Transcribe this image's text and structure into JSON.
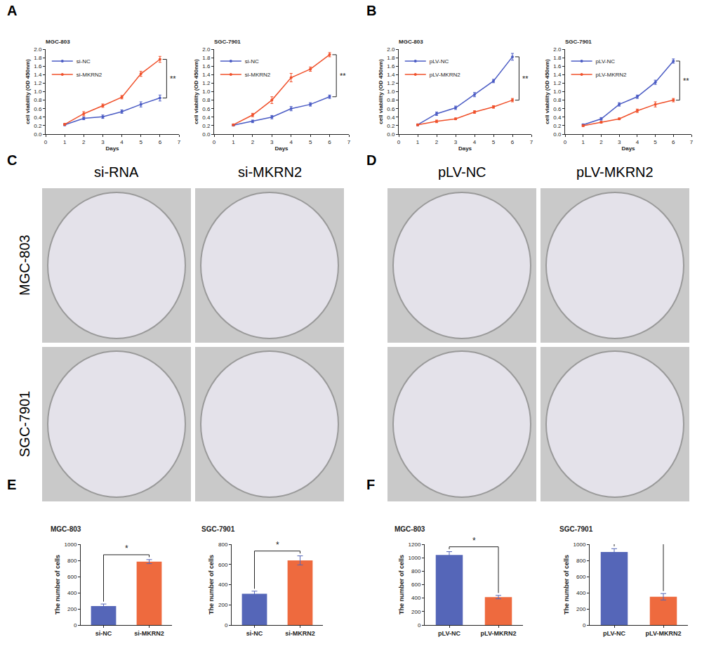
{
  "chart_data": [
    {
      "type": "line",
      "panel": "A",
      "title": "MGC-803",
      "x_label": "Days",
      "y_label": "cell viability (OD 450nm)",
      "x": [
        1,
        2,
        3,
        4,
        5,
        6
      ],
      "xlim": [
        0,
        7
      ],
      "xticks": [
        0,
        1,
        2,
        3,
        4,
        5,
        6,
        7
      ],
      "ylim": [
        0,
        2
      ],
      "yticks": [
        {
          "value": 0,
          "label": "0.0"
        },
        0.2,
        0.4,
        0.6,
        0.8,
        {
          "value": 1,
          "label": "1.0"
        },
        1.2,
        1.4,
        1.6,
        1.8,
        {
          "value": 2,
          "label": "2.0"
        }
      ],
      "grid": false,
      "legend": "upper left",
      "significance": "**",
      "series": [
        {
          "name": "si-NC",
          "color": "#4a5bc4",
          "marker": "circle",
          "values": [
            0.22,
            0.37,
            0.41,
            0.53,
            0.7,
            0.85
          ],
          "errors": [
            0.02,
            0.03,
            0.04,
            0.04,
            0.06,
            0.07
          ]
        },
        {
          "name": "si-MKRN2",
          "color": "#f0502a",
          "marker": "circle",
          "values": [
            0.23,
            0.48,
            0.67,
            0.87,
            1.42,
            1.76
          ],
          "errors": [
            0.02,
            0.05,
            0.04,
            0.04,
            0.06,
            0.07
          ]
        }
      ]
    },
    {
      "type": "line",
      "panel": "A",
      "title": "SGC-7901",
      "x_label": "Days",
      "y_label": "cell viability (OD 450nm)",
      "x": [
        1,
        2,
        3,
        4,
        5,
        6
      ],
      "xlim": [
        0,
        7
      ],
      "xticks": [
        0,
        1,
        2,
        3,
        4,
        5,
        6,
        7
      ],
      "ylim": [
        0,
        2
      ],
      "yticks": [
        {
          "value": 0,
          "label": "0.0"
        },
        0.2,
        0.4,
        0.6,
        0.8,
        {
          "value": 1,
          "label": "1.0"
        },
        1.2,
        1.4,
        1.6,
        1.8,
        {
          "value": 2,
          "label": "2.0"
        }
      ],
      "grid": false,
      "legend": "upper left",
      "significance": "**",
      "series": [
        {
          "name": "si-NC",
          "color": "#4a5bc4",
          "marker": "circle",
          "values": [
            0.21,
            0.3,
            0.4,
            0.6,
            0.7,
            0.88
          ],
          "errors": [
            0.02,
            0.03,
            0.04,
            0.05,
            0.04,
            0.04
          ]
        },
        {
          "name": "si-MKRN2",
          "color": "#f0502a",
          "marker": "circle",
          "values": [
            0.22,
            0.45,
            0.8,
            1.33,
            1.53,
            1.87
          ],
          "errors": [
            0.02,
            0.04,
            0.08,
            0.1,
            0.05,
            0.05
          ]
        }
      ]
    },
    {
      "type": "line",
      "panel": "B",
      "title": "MGC-803",
      "x_label": "Days",
      "y_label": "cell viability (OD 450nm)",
      "x": [
        1,
        2,
        3,
        4,
        5,
        6
      ],
      "xlim": [
        0,
        7
      ],
      "xticks": [
        0,
        1,
        2,
        3,
        4,
        5,
        6,
        7
      ],
      "ylim": [
        0,
        2
      ],
      "yticks": [
        {
          "value": 0,
          "label": "0.0"
        },
        0.2,
        0.4,
        0.6,
        0.8,
        {
          "value": 1,
          "label": "1.0"
        },
        1.2,
        1.4,
        1.6,
        1.8,
        {
          "value": 2,
          "label": "2.0"
        }
      ],
      "grid": false,
      "legend": "upper left",
      "significance": "**",
      "series": [
        {
          "name": "pLV-NC",
          "color": "#4a5bc4",
          "marker": "circle",
          "values": [
            0.22,
            0.48,
            0.62,
            0.93,
            1.25,
            1.82
          ],
          "errors": [
            0.02,
            0.04,
            0.04,
            0.05,
            0.04,
            0.08
          ]
        },
        {
          "name": "pLV-MKRN2",
          "color": "#f0502a",
          "marker": "circle",
          "values": [
            0.22,
            0.3,
            0.36,
            0.52,
            0.64,
            0.8
          ],
          "errors": [
            0.02,
            0.03,
            0.02,
            0.03,
            0.03,
            0.04
          ]
        }
      ]
    },
    {
      "type": "line",
      "panel": "B",
      "title": "SGC-7901",
      "x_label": "Days",
      "y_label": "cell viability (OD 450nm)",
      "x": [
        1,
        2,
        3,
        4,
        5,
        6
      ],
      "xlim": [
        0,
        7
      ],
      "xticks": [
        0,
        1,
        2,
        3,
        4,
        5,
        6,
        7
      ],
      "ylim": [
        0,
        2
      ],
      "yticks": [
        {
          "value": 0,
          "label": "0.0"
        },
        0.2,
        0.4,
        0.6,
        0.8,
        {
          "value": 1,
          "label": "1.0"
        },
        1.2,
        1.4,
        1.6,
        1.8,
        {
          "value": 2,
          "label": "2.0"
        }
      ],
      "grid": false,
      "legend": "upper left",
      "significance": "**",
      "series": [
        {
          "name": "pLV-NC",
          "color": "#4a5bc4",
          "marker": "circle",
          "values": [
            0.22,
            0.36,
            0.7,
            0.88,
            1.22,
            1.72
          ],
          "errors": [
            0.02,
            0.03,
            0.04,
            0.04,
            0.05,
            0.05
          ]
        },
        {
          "name": "pLV-MKRN2",
          "color": "#f0502a",
          "marker": "circle",
          "values": [
            0.2,
            0.28,
            0.36,
            0.55,
            0.7,
            0.8
          ],
          "errors": [
            0.02,
            0.02,
            0.02,
            0.04,
            0.06,
            0.04
          ]
        }
      ]
    },
    {
      "type": "bar",
      "panel": "E",
      "title": "MGC-803",
      "y_label": "The number of cells",
      "categories": [
        "si-NC",
        "si-MKRN2"
      ],
      "values": [
        235,
        785
      ],
      "errors": [
        25,
        25
      ],
      "colors": [
        "#5566b8",
        "#ee6a3e"
      ],
      "ylim": [
        0,
        1000
      ],
      "yticks": [
        0,
        200,
        400,
        600,
        800,
        1000
      ],
      "grid": false,
      "significance": "*"
    },
    {
      "type": "bar",
      "panel": "E",
      "title": "SGC-7901",
      "y_label": "The number of cells",
      "categories": [
        "si-NC",
        "si-MKRN2"
      ],
      "values": [
        310,
        640
      ],
      "errors": [
        25,
        45
      ],
      "colors": [
        "#5566b8",
        "#ee6a3e"
      ],
      "ylim": [
        0,
        800
      ],
      "yticks": [
        0,
        200,
        400,
        600,
        800
      ],
      "grid": false,
      "significance": "*"
    },
    {
      "type": "bar",
      "panel": "F",
      "title": "MGC-803",
      "y_label": "The number of cells",
      "categories": [
        "pLV-NC",
        "pLV-MKRN2"
      ],
      "values": [
        1040,
        415
      ],
      "errors": [
        50,
        25
      ],
      "colors": [
        "#5566b8",
        "#ee6a3e"
      ],
      "ylim": [
        0,
        1200
      ],
      "yticks": [
        0,
        200,
        400,
        600,
        800,
        1000,
        1200
      ],
      "grid": false,
      "significance": "*"
    },
    {
      "type": "bar",
      "panel": "F",
      "title": "SGC-7901",
      "y_label": "The number of cells",
      "categories": [
        "pLV-NC",
        "pLV-MKRN2"
      ],
      "values": [
        905,
        350
      ],
      "errors": [
        40,
        40
      ],
      "colors": [
        "#5566b8",
        "#ee6a3e"
      ],
      "ylim": [
        0,
        1000
      ],
      "yticks": [
        0,
        200,
        400,
        600,
        800,
        1000
      ],
      "grid": false,
      "significance": "*"
    }
  ],
  "plates": {
    "row_labels": [
      "MGC-803",
      "SGC-7901"
    ],
    "panels": [
      {
        "panel": "C",
        "columns": [
          "si-RNA",
          "si-MKRN2"
        ]
      },
      {
        "panel": "D",
        "columns": [
          "pLV-NC",
          "pLV-MKRN2"
        ]
      }
    ]
  }
}
